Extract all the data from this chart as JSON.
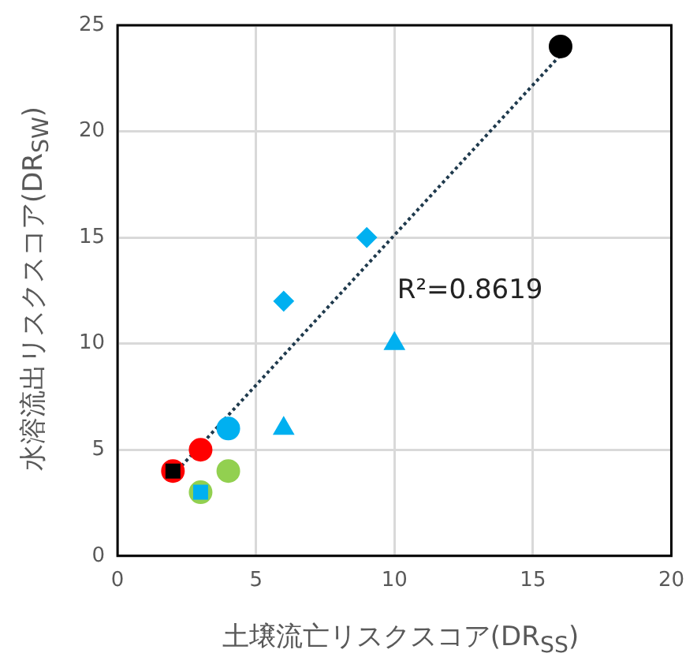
{
  "chart_data": {
    "type": "scatter",
    "xlabel": "土壌流亡リスクスコア(DR$_{SS}$)",
    "ylabel": "水溶流出リスクスコア(DR$_{SW}$)",
    "xlim": [
      0,
      20
    ],
    "xticks": [
      0,
      5,
      10,
      15,
      20
    ],
    "ylim": [
      0,
      25
    ],
    "yticks": [
      0,
      5,
      10,
      15,
      20,
      25
    ],
    "grid": true,
    "annotations": [
      "R²=0.8619"
    ],
    "series": [
      {
        "type": "line",
        "x": [
          2,
          16
        ],
        "values": [
          3.8,
          23.6
        ],
        "color": "#1f3a4d",
        "line_style": "dotted",
        "marker": "none"
      },
      {
        "x": [
          2
        ],
        "values": [
          4
        ],
        "color": "#ff0000",
        "marker": "circle"
      },
      {
        "x": [
          2
        ],
        "values": [
          4
        ],
        "color": "#000000",
        "marker": "square"
      },
      {
        "x": [
          3
        ],
        "values": [
          5
        ],
        "color": "#ff0000",
        "marker": "circle"
      },
      {
        "x": [
          3,
          4
        ],
        "values": [
          3,
          4
        ],
        "color": "#92d050",
        "marker": "circle"
      },
      {
        "x": [
          3
        ],
        "values": [
          3
        ],
        "color": "#00b0f0",
        "marker": "square"
      },
      {
        "x": [
          4
        ],
        "values": [
          6
        ],
        "color": "#00b0f0",
        "marker": "circle"
      },
      {
        "x": [
          6,
          9
        ],
        "values": [
          12,
          15
        ],
        "color": "#00b0f0",
        "marker": "diamond"
      },
      {
        "x": [
          6,
          10
        ],
        "values": [
          6,
          10
        ],
        "color": "#00b0f0",
        "marker": "triangle"
      },
      {
        "x": [
          16
        ],
        "values": [
          24
        ],
        "color": "#000000",
        "marker": "circle"
      }
    ]
  }
}
